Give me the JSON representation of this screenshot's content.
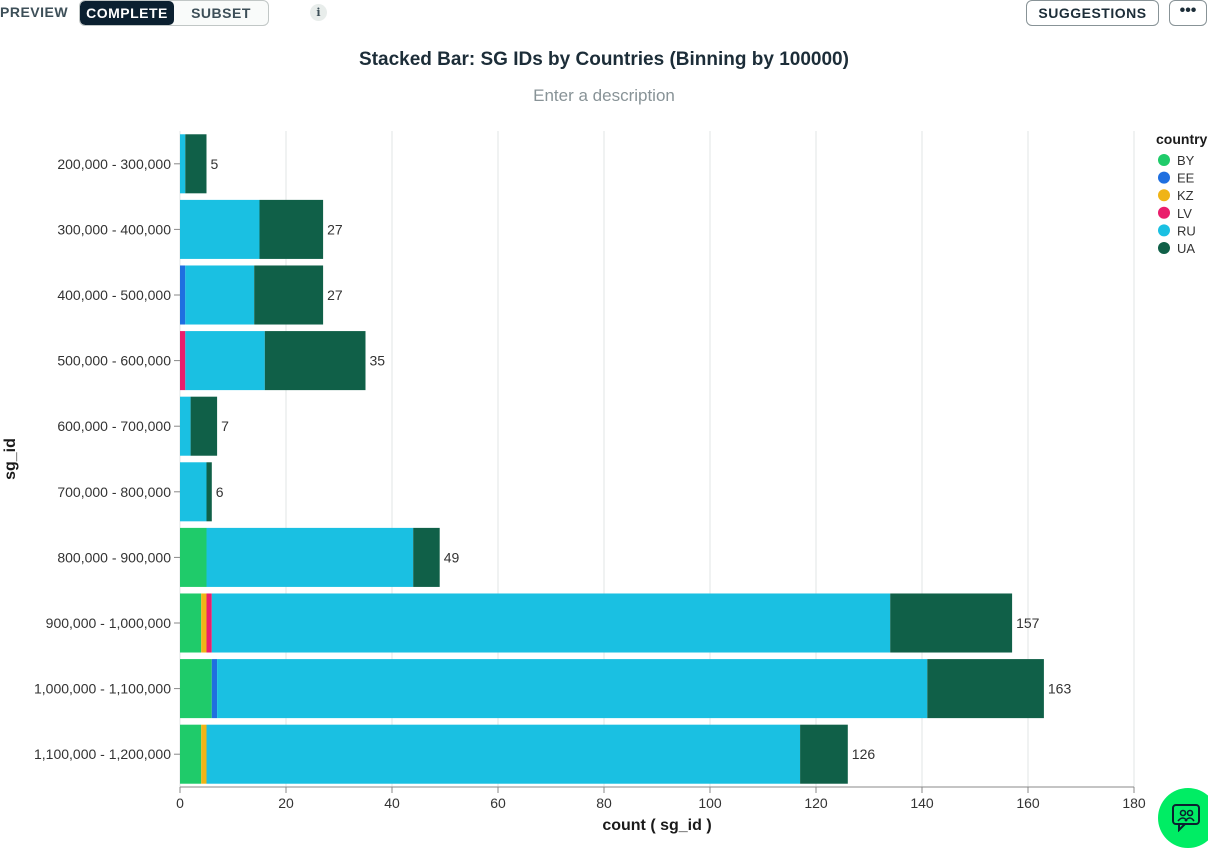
{
  "toolbar": {
    "preview_label": "PREVIEW",
    "tabs": [
      {
        "label": "COMPLETE",
        "active": true
      },
      {
        "label": "SUBSET",
        "active": false
      }
    ],
    "info_icon": "i",
    "suggestions_label": "SUGGESTIONS",
    "more_label": "•••"
  },
  "chart_header": {
    "title": "Stacked Bar: SG IDs by Countries (Binning by 100000)",
    "description_placeholder": "Enter a description"
  },
  "colors": {
    "BY": "#1fcb6a",
    "EE": "#1f6fe0",
    "KZ": "#f0b416",
    "LV": "#ea1e6c",
    "RU": "#1ac0e2",
    "UA": "#106048",
    "grid": "#e1e5e4",
    "axis": "#000000"
  },
  "chart_data": {
    "type": "bar",
    "orientation": "horizontal",
    "stacked": true,
    "title": "Stacked Bar: SG IDs by Countries (Binning by 100000)",
    "xlabel": "count ( sg_id )",
    "ylabel": "sg_id",
    "xlim": [
      0,
      180
    ],
    "xticks": [
      0,
      20,
      40,
      60,
      80,
      100,
      120,
      140,
      160,
      180
    ],
    "grid": true,
    "legend": {
      "title": "country",
      "position": "right"
    },
    "categories": [
      "200,000 - 300,000",
      "300,000 - 400,000",
      "400,000 - 500,000",
      "500,000 - 600,000",
      "600,000 - 700,000",
      "700,000 - 800,000",
      "800,000 - 900,000",
      "900,000 - 1,000,000",
      "1,000,000 - 1,100,000",
      "1,100,000 - 1,200,000"
    ],
    "series": [
      {
        "name": "BY",
        "values": [
          0,
          0,
          0,
          0,
          0,
          0,
          5,
          4,
          6,
          4
        ]
      },
      {
        "name": "EE",
        "values": [
          0,
          0,
          1,
          0,
          0,
          0,
          0,
          0,
          1,
          0
        ]
      },
      {
        "name": "KZ",
        "values": [
          0,
          0,
          0,
          0,
          0,
          0,
          0,
          1,
          0,
          1
        ]
      },
      {
        "name": "LV",
        "values": [
          0,
          0,
          0,
          1,
          0,
          0,
          0,
          1,
          0,
          0
        ]
      },
      {
        "name": "RU",
        "values": [
          1,
          15,
          13,
          15,
          2,
          5,
          39,
          128,
          134,
          112
        ]
      },
      {
        "name": "UA",
        "values": [
          4,
          12,
          13,
          19,
          5,
          1,
          5,
          23,
          22,
          9
        ]
      }
    ],
    "totals": [
      5,
      27,
      27,
      35,
      7,
      6,
      49,
      157,
      163,
      126
    ]
  }
}
